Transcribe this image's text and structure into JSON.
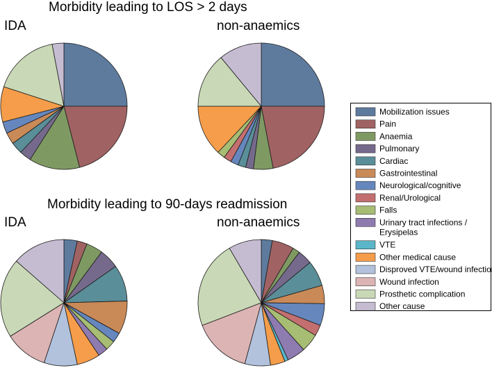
{
  "colors": {
    "Mobilization issues": "#5e7b9e",
    "Pain": "#a06262",
    "Anaemia": "#7f9963",
    "Pulmonary": "#766a8c",
    "Cardiac": "#5a8e98",
    "Gastrointestinal": "#c98a58",
    "Neurological/cognitive": "#6687bd",
    "Renal/Urological": "#c46f6f",
    "Falls": "#a7bd73",
    "Urinary tract infections / Erysipelas": "#8e7bb0",
    "VTE": "#5ab6c8",
    "Other medical cause": "#f59d4a",
    "Disproved VTE/wound infection": "#b2c2dc",
    "Wound infection": "#dcb4b4",
    "Prosthetic complication": "#c9d8b6",
    "Other cause": "#c6bcd2"
  },
  "chart_data": [
    {
      "type": "pie",
      "section_title": "Morbidity leading to LOS > 2 days",
      "title": "IDA",
      "slices": [
        {
          "label": "Mobilization issues",
          "value": 25
        },
        {
          "label": "Pain",
          "value": 21
        },
        {
          "label": "Anaemia",
          "value": 13
        },
        {
          "label": "Pulmonary",
          "value": 3
        },
        {
          "label": "Cardiac",
          "value": 3
        },
        {
          "label": "Gastrointestinal",
          "value": 3
        },
        {
          "label": "Neurological/cognitive",
          "value": 3
        },
        {
          "label": "Renal/Urological",
          "value": 0
        },
        {
          "label": "Falls",
          "value": 0
        },
        {
          "label": "Urinary tract infections / Erysipelas",
          "value": 0
        },
        {
          "label": "VTE",
          "value": 0
        },
        {
          "label": "Other medical cause",
          "value": 9
        },
        {
          "label": "Disproved VTE/wound infection",
          "value": 0
        },
        {
          "label": "Wound infection",
          "value": 0
        },
        {
          "label": "Prosthetic complication",
          "value": 17
        },
        {
          "label": "Other cause",
          "value": 3
        }
      ]
    },
    {
      "type": "pie",
      "section_title": "Morbidity leading to LOS > 2 days",
      "title": "non-anaemics",
      "slices": [
        {
          "label": "Mobilization issues",
          "value": 25
        },
        {
          "label": "Pain",
          "value": 22
        },
        {
          "label": "Anaemia",
          "value": 5
        },
        {
          "label": "Pulmonary",
          "value": 2
        },
        {
          "label": "Cardiac",
          "value": 2
        },
        {
          "label": "Gastrointestinal",
          "value": 0
        },
        {
          "label": "Neurological/cognitive",
          "value": 2
        },
        {
          "label": "Renal/Urological",
          "value": 2
        },
        {
          "label": "Falls",
          "value": 2
        },
        {
          "label": "Urinary tract infections / Erysipelas",
          "value": 0
        },
        {
          "label": "VTE",
          "value": 0
        },
        {
          "label": "Other medical cause",
          "value": 13
        },
        {
          "label": "Disproved VTE/wound infection",
          "value": 0
        },
        {
          "label": "Wound infection",
          "value": 0
        },
        {
          "label": "Prosthetic complication",
          "value": 14
        },
        {
          "label": "Other cause",
          "value": 11
        }
      ]
    },
    {
      "type": "pie",
      "section_title": "Morbidity leading to 90-days readmission",
      "title": "IDA",
      "slices": [
        {
          "label": "Mobilization issues",
          "value": 4
        },
        {
          "label": "Pain",
          "value": 3
        },
        {
          "label": "Anaemia",
          "value": 5
        },
        {
          "label": "Pulmonary",
          "value": 6
        },
        {
          "label": "Cardiac",
          "value": 11
        },
        {
          "label": "Gastrointestinal",
          "value": 10
        },
        {
          "label": "Neurological/cognitive",
          "value": 3
        },
        {
          "label": "Renal/Urological",
          "value": 0
        },
        {
          "label": "Falls",
          "value": 3
        },
        {
          "label": "Urinary tract infections / Erysipelas",
          "value": 3
        },
        {
          "label": "VTE",
          "value": 0
        },
        {
          "label": "Other medical cause",
          "value": 7
        },
        {
          "label": "Disproved VTE/wound infection",
          "value": 10
        },
        {
          "label": "Wound infection",
          "value": 13
        },
        {
          "label": "Prosthetic complication",
          "value": 24
        },
        {
          "label": "Other cause",
          "value": 16
        }
      ]
    },
    {
      "type": "pie",
      "section_title": "Morbidity leading to 90-days readmission",
      "title": "non-anaemics",
      "slices": [
        {
          "label": "Mobilization issues",
          "value": 3
        },
        {
          "label": "Pain",
          "value": 6
        },
        {
          "label": "Anaemia",
          "value": 2
        },
        {
          "label": "Pulmonary",
          "value": 4
        },
        {
          "label": "Cardiac",
          "value": 7
        },
        {
          "label": "Gastrointestinal",
          "value": 5
        },
        {
          "label": "Neurological/cognitive",
          "value": 6
        },
        {
          "label": "Renal/Urological",
          "value": 3
        },
        {
          "label": "Falls",
          "value": 5
        },
        {
          "label": "Urinary tract infections / Erysipelas",
          "value": 5
        },
        {
          "label": "VTE",
          "value": 1
        },
        {
          "label": "Other medical cause",
          "value": 4
        },
        {
          "label": "Disproved VTE/wound infection",
          "value": 7
        },
        {
          "label": "Wound infection",
          "value": 16
        },
        {
          "label": "Prosthetic complication",
          "value": 24
        },
        {
          "label": "Other cause",
          "value": 9
        }
      ]
    }
  ],
  "legend": [
    "Mobilization issues",
    "Pain",
    "Anaemia",
    "Pulmonary",
    "Cardiac",
    "Gastrointestinal",
    "Neurological/cognitive",
    "Renal/Urological",
    "Falls",
    "Urinary tract infections / Erysipelas",
    "VTE",
    "Other medical cause",
    "Disproved VTE/wound infection",
    "Wound infection",
    "Prosthetic complication",
    "Other cause"
  ],
  "legend_display": [
    [
      "Mobilization issues"
    ],
    [
      "Pain"
    ],
    [
      "Anaemia"
    ],
    [
      "Pulmonary"
    ],
    [
      "Cardiac"
    ],
    [
      "Gastrointestinal"
    ],
    [
      "Neurological/cognitive"
    ],
    [
      "Renal/Urological"
    ],
    [
      "Falls"
    ],
    [
      "Urinary tract infections /",
      "Erysipelas"
    ],
    [
      "VTE"
    ],
    [
      "Other medical cause"
    ],
    [
      "Disproved VTE/wound infection"
    ],
    [
      "Wound infection"
    ],
    [
      "Prosthetic complication"
    ],
    [
      "Other cause"
    ]
  ]
}
